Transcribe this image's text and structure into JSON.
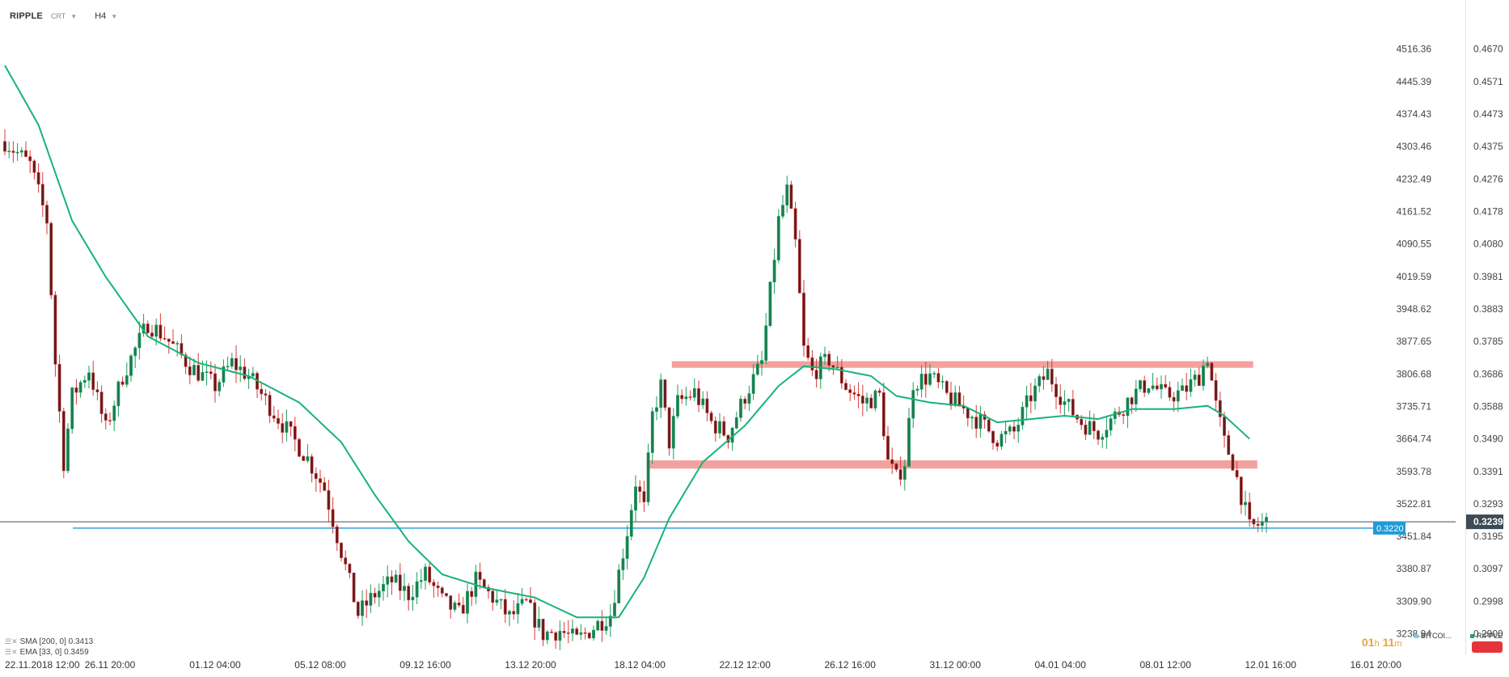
{
  "header": {
    "symbol": "RIPPLE",
    "chart_style": "CRT",
    "timeframe": "H4"
  },
  "indicators": [
    {
      "label": "SMA [200, 0] 0.3413",
      "color": "#1f4e9e"
    },
    {
      "label": "EMA [33, 0] 0.3459",
      "color": "#17b37a"
    }
  ],
  "timer": {
    "hours": "01",
    "h": "h",
    "minutes": "11",
    "m": "m"
  },
  "legend": [
    {
      "label": "BITCOI...",
      "color": "#7ec8ef"
    },
    {
      "label": "RIPPLE",
      "color": "#17a86a"
    }
  ],
  "colors": {
    "bull": "#1a9e5f",
    "bear": "#d93a3a",
    "candle_body_up": "#1f7a52",
    "candle_body_down": "#5a1e1e",
    "ema": "#17b37a",
    "zone": "#ee8a86",
    "support_line": "#1f9bd9",
    "price_line": "#37505e",
    "price_tag": "#3b4a54",
    "support_tag": "#1f9bd9"
  },
  "chart_data": {
    "type": "candlestick",
    "title": "RIPPLE",
    "timeframe": "H4",
    "x_tick_labels": [
      "22.11.2018  12:00",
      "26.11  20:00",
      "01.12  04:00",
      "05.12  08:00",
      "09.12  16:00",
      "13.12  20:00",
      "18.12  04:00",
      "22.12  12:00",
      "26.12  16:00",
      "31.12  00:00",
      "04.01  04:00",
      "08.01  12:00",
      "12.01  16:00",
      "16.01  20:00"
    ],
    "y_axis_left_ticks": [
      "4516.36",
      "4445.39",
      "4374.43",
      "4303.46",
      "4232.49",
      "4161.52",
      "4090.55",
      "4019.59",
      "3948.62",
      "3877.65",
      "3806.68",
      "3735.71",
      "3664.74",
      "3593.78",
      "3522.81",
      "3451.84",
      "3380.87",
      "3309.90",
      "3238.94"
    ],
    "y_axis_right_ticks": [
      "0.4670",
      "0.4571",
      "0.4473",
      "0.4375",
      "0.4276",
      "0.4178",
      "0.4080",
      "0.3981",
      "0.3883",
      "0.3785",
      "0.3686",
      "0.3588",
      "0.3490",
      "0.3391",
      "0.3293",
      "0.3195",
      "0.3097",
      "0.2998",
      "0.2900"
    ],
    "ylim": [
      0.286,
      0.472
    ],
    "current_price": "0.3239",
    "current_price_value": 0.3239,
    "support_level": "0.3220",
    "support_level_value": 0.322,
    "zones": [
      {
        "name": "resistance",
        "low": 0.3705,
        "high": 0.3725,
        "from_index": 124,
        "to_index": 293
      },
      {
        "name": "support",
        "low": 0.34,
        "high": 0.3425,
        "from_index": 118,
        "to_index": 294
      }
    ],
    "ema_period": 33,
    "ema_value": 0.3459,
    "sma_period": 200,
    "sma_value": 0.3413,
    "close_path": [
      [
        0,
        0.439
      ],
      [
        6,
        0.432
      ],
      [
        10,
        0.415
      ],
      [
        12,
        0.372
      ],
      [
        14,
        0.342
      ],
      [
        16,
        0.362
      ],
      [
        20,
        0.37
      ],
      [
        24,
        0.352
      ],
      [
        28,
        0.368
      ],
      [
        34,
        0.384
      ],
      [
        38,
        0.38
      ],
      [
        44,
        0.371
      ],
      [
        50,
        0.365
      ],
      [
        54,
        0.372
      ],
      [
        58,
        0.368
      ],
      [
        64,
        0.357
      ],
      [
        68,
        0.35
      ],
      [
        72,
        0.343
      ],
      [
        76,
        0.334
      ],
      [
        80,
        0.315
      ],
      [
        84,
        0.296
      ],
      [
        88,
        0.302
      ],
      [
        92,
        0.306
      ],
      [
        96,
        0.302
      ],
      [
        100,
        0.308
      ],
      [
        104,
        0.3
      ],
      [
        108,
        0.296
      ],
      [
        112,
        0.306
      ],
      [
        116,
        0.301
      ],
      [
        120,
        0.295
      ],
      [
        124,
        0.299
      ],
      [
        128,
        0.29
      ],
      [
        132,
        0.291
      ],
      [
        136,
        0.288
      ],
      [
        140,
        0.292
      ],
      [
        144,
        0.296
      ],
      [
        148,
        0.321
      ],
      [
        150,
        0.336
      ],
      [
        152,
        0.328
      ],
      [
        154,
        0.356
      ],
      [
        156,
        0.365
      ],
      [
        158,
        0.348
      ],
      [
        160,
        0.36
      ],
      [
        164,
        0.363
      ],
      [
        168,
        0.354
      ],
      [
        172,
        0.35
      ],
      [
        176,
        0.362
      ],
      [
        180,
        0.372
      ],
      [
        184,
        0.415
      ],
      [
        186,
        0.424
      ],
      [
        188,
        0.408
      ],
      [
        190,
        0.376
      ],
      [
        192,
        0.369
      ],
      [
        196,
        0.373
      ],
      [
        200,
        0.365
      ],
      [
        204,
        0.36
      ],
      [
        208,
        0.362
      ],
      [
        210,
        0.342
      ],
      [
        212,
        0.337
      ],
      [
        214,
        0.342
      ],
      [
        216,
        0.366
      ],
      [
        220,
        0.368
      ],
      [
        224,
        0.362
      ],
      [
        228,
        0.358
      ],
      [
        232,
        0.354
      ],
      [
        236,
        0.349
      ],
      [
        240,
        0.351
      ],
      [
        244,
        0.362
      ],
      [
        248,
        0.369
      ],
      [
        252,
        0.36
      ],
      [
        256,
        0.354
      ],
      [
        260,
        0.351
      ],
      [
        264,
        0.356
      ],
      [
        268,
        0.362
      ],
      [
        272,
        0.366
      ],
      [
        276,
        0.362
      ],
      [
        280,
        0.363
      ],
      [
        284,
        0.368
      ],
      [
        286,
        0.374
      ],
      [
        288,
        0.359
      ],
      [
        290,
        0.348
      ],
      [
        292,
        0.342
      ],
      [
        294,
        0.332
      ],
      [
        296,
        0.322
      ],
      [
        300,
        0.3239
      ]
    ],
    "candle_count": 301,
    "x_tick_indices": [
      0,
      25,
      50,
      75,
      100,
      125,
      151,
      176,
      201,
      226,
      251,
      276,
      301,
      326
    ],
    "ema_path": [
      [
        0,
        0.462
      ],
      [
        8,
        0.444
      ],
      [
        16,
        0.415
      ],
      [
        24,
        0.398
      ],
      [
        34,
        0.38
      ],
      [
        46,
        0.372
      ],
      [
        58,
        0.368
      ],
      [
        70,
        0.36
      ],
      [
        80,
        0.348
      ],
      [
        88,
        0.332
      ],
      [
        96,
        0.318
      ],
      [
        104,
        0.308
      ],
      [
        114,
        0.304
      ],
      [
        126,
        0.301
      ],
      [
        136,
        0.295
      ],
      [
        146,
        0.295
      ],
      [
        152,
        0.307
      ],
      [
        158,
        0.325
      ],
      [
        166,
        0.342
      ],
      [
        176,
        0.353
      ],
      [
        184,
        0.365
      ],
      [
        190,
        0.371
      ],
      [
        198,
        0.37
      ],
      [
        206,
        0.368
      ],
      [
        212,
        0.362
      ],
      [
        220,
        0.36
      ],
      [
        228,
        0.359
      ],
      [
        236,
        0.354
      ],
      [
        244,
        0.355
      ],
      [
        252,
        0.356
      ],
      [
        260,
        0.355
      ],
      [
        268,
        0.358
      ],
      [
        278,
        0.358
      ],
      [
        286,
        0.359
      ],
      [
        290,
        0.356
      ],
      [
        296,
        0.349
      ]
    ]
  }
}
